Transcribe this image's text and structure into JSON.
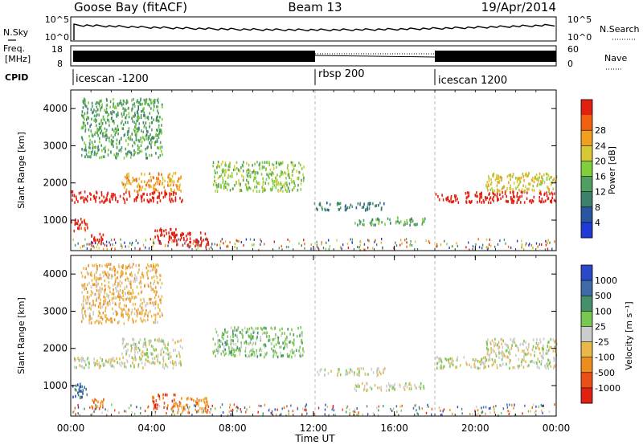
{
  "header": {
    "station": "Goose Bay (fitACF)",
    "beam": "Beam 13",
    "date": "19/Apr/2014"
  },
  "noise_panel": {
    "left_label": "N.Sky",
    "right_label": "N.Search",
    "left_ticks": [
      "10^5",
      "10^0"
    ],
    "right_ticks": [
      "10^5",
      "10^0"
    ]
  },
  "freq_panel": {
    "left_label_1": "Freq.",
    "left_label_2": "[MHz]",
    "right_label": "Nave",
    "left_ticks": [
      "18",
      "8"
    ],
    "right_ticks": [
      "60",
      "0"
    ]
  },
  "cpid": {
    "label": "CPID",
    "segments": [
      {
        "name": "icescan -1200",
        "start_hour": 0
      },
      {
        "name": "rbsp 200",
        "start_hour": 12
      },
      {
        "name": "icescan 1200",
        "start_hour": 18
      }
    ]
  },
  "x_axis": {
    "label": "Time UT",
    "ticks": [
      "00:00",
      "04:00",
      "08:00",
      "12:00",
      "16:00",
      "20:00",
      "00:00"
    ]
  },
  "power_panel": {
    "ylabel": "Slant Range [km]",
    "yticks": [
      "1000",
      "2000",
      "3000",
      "4000"
    ],
    "colorbar_label": "Power [dB]",
    "colorbar_ticks": [
      "4",
      "8",
      "12",
      "16",
      "20",
      "24",
      "28"
    ],
    "colors": [
      "#1f3bd6",
      "#2a55a0",
      "#3f7f6e",
      "#4fa060",
      "#7fcf3a",
      "#d8c836",
      "#f0a020",
      "#f06010",
      "#e02010"
    ]
  },
  "velocity_panel": {
    "ylabel": "Slant Range [km]",
    "yticks": [
      "1000",
      "2000",
      "3000",
      "4000"
    ],
    "colorbar_label": "Velocity [m s⁻¹]",
    "colorbar_ticks": [
      "1000",
      "500",
      "100",
      "25",
      "-25",
      "-100",
      "-500",
      "-1000"
    ],
    "colors": [
      "#2a48c8",
      "#3f6aa8",
      "#458f6a",
      "#78c850",
      "#cccccc",
      "#eab848",
      "#ee8c1e",
      "#ea5016",
      "#e02010"
    ]
  },
  "chart_data": {
    "type": "heatmap",
    "x_range_hours": [
      0,
      24
    ],
    "y_range_km": [
      180,
      4500
    ],
    "power_blobs": [
      {
        "t0": 0.0,
        "t1": 0.8,
        "r0": 700,
        "r1": 1100,
        "level": 8
      },
      {
        "t0": 1.0,
        "t1": 1.6,
        "r0": 400,
        "r1": 700,
        "level": 11
      },
      {
        "t0": 4.0,
        "t1": 5.2,
        "r0": 400,
        "r1": 800,
        "level": 10
      },
      {
        "t0": 5.0,
        "t1": 6.8,
        "r0": 300,
        "r1": 700,
        "level": 12
      },
      {
        "t0": 0.0,
        "t1": 5.5,
        "r0": 1500,
        "r1": 1800,
        "level": 10
      },
      {
        "t0": 2.5,
        "t1": 5.5,
        "r0": 1800,
        "r1": 2300,
        "level": 6
      },
      {
        "t0": 7.0,
        "t1": 11.5,
        "r0": 1800,
        "r1": 2600,
        "level": 4
      },
      {
        "t0": 12.0,
        "t1": 15.5,
        "r0": 1300,
        "r1": 1500,
        "level": 2
      },
      {
        "t0": 14.0,
        "t1": 17.5,
        "r0": 900,
        "r1": 1100,
        "level": 3
      },
      {
        "t0": 18.0,
        "t1": 24.0,
        "r0": 1500,
        "r1": 1800,
        "level": 11
      },
      {
        "t0": 20.5,
        "t1": 24.0,
        "r0": 1800,
        "r1": 2300,
        "level": 5
      },
      {
        "t0": 0.5,
        "t1": 4.5,
        "r0": 2700,
        "r1": 4300,
        "level": 3
      }
    ],
    "velocity_blobs": [
      {
        "t0": 0.0,
        "t1": 0.8,
        "r0": 700,
        "r1": 1100,
        "level": 1
      },
      {
        "t0": 1.0,
        "t1": 1.6,
        "r0": 400,
        "r1": 700,
        "level": 6
      },
      {
        "t0": 4.0,
        "t1": 5.2,
        "r0": 400,
        "r1": 800,
        "level": 7
      },
      {
        "t0": 5.0,
        "t1": 6.8,
        "r0": 300,
        "r1": 700,
        "level": 6
      },
      {
        "t0": 0.0,
        "t1": 5.5,
        "r0": 1500,
        "r1": 1800,
        "level": 4
      },
      {
        "t0": 2.5,
        "t1": 5.5,
        "r0": 1800,
        "r1": 2300,
        "level": 4
      },
      {
        "t0": 7.0,
        "t1": 11.5,
        "r0": 1800,
        "r1": 2600,
        "level": 3
      },
      {
        "t0": 12.0,
        "t1": 15.5,
        "r0": 1300,
        "r1": 1500,
        "level": 4
      },
      {
        "t0": 14.0,
        "t1": 17.5,
        "r0": 900,
        "r1": 1100,
        "level": 4
      },
      {
        "t0": 18.0,
        "t1": 24.0,
        "r0": 1500,
        "r1": 1800,
        "level": 4
      },
      {
        "t0": 20.5,
        "t1": 24.0,
        "r0": 1800,
        "r1": 2300,
        "level": 4
      },
      {
        "t0": 0.5,
        "t1": 4.5,
        "r0": 2700,
        "r1": 4300,
        "level": 5
      }
    ]
  }
}
